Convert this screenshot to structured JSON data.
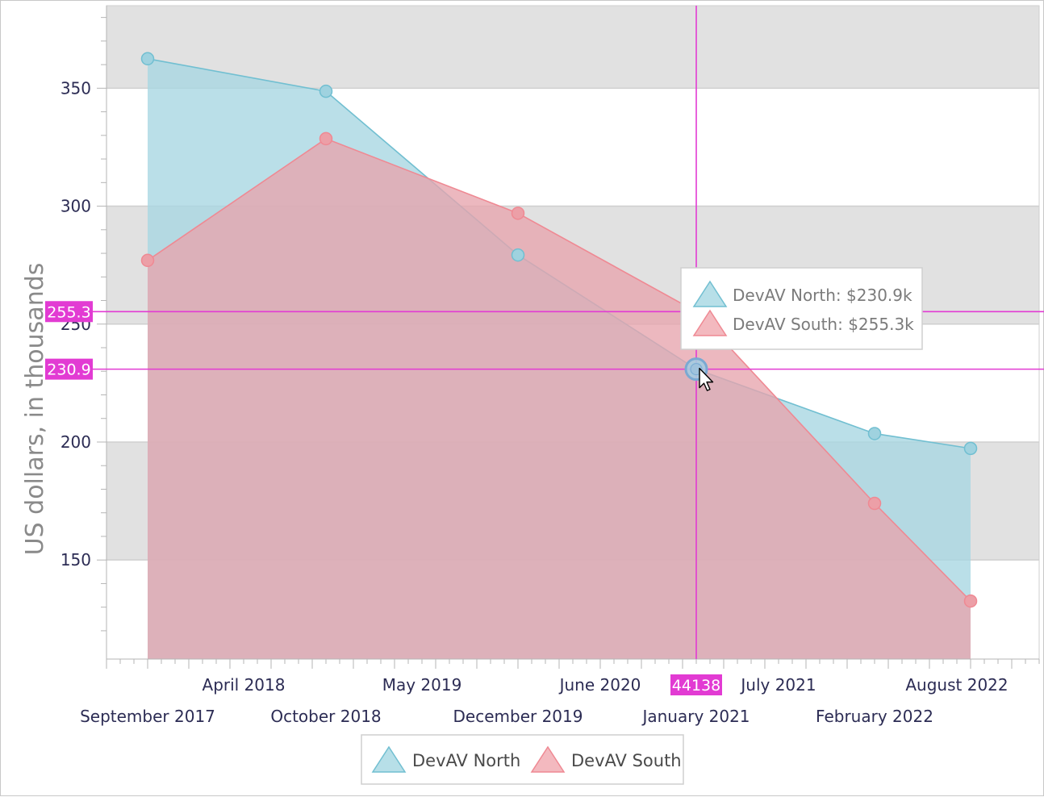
{
  "chart_data": {
    "type": "area",
    "ylabel": "US dollars, in thousands",
    "ylim": [
      108,
      385
    ],
    "y_ticks": [
      150,
      200,
      250,
      300,
      350
    ],
    "y_tick_labels": [
      "150",
      "200",
      "250",
      "300",
      "350"
    ],
    "x_axis_dates": {
      "start_month": "2017-06",
      "end_month": "2023-02",
      "row1": [
        {
          "month": "2018-04",
          "label": "April 2018"
        },
        {
          "month": "2019-05",
          "label": "May 2019"
        },
        {
          "month": "2020-06",
          "label": "June 2020"
        },
        {
          "month": "2021-07",
          "label": "July 2021"
        },
        {
          "month": "2022-08",
          "label": "August 2022"
        }
      ],
      "row2": [
        {
          "month": "2017-09",
          "label": "September 2017"
        },
        {
          "month": "2018-10",
          "label": "October 2018"
        },
        {
          "month": "2019-12",
          "label": "December 2019"
        },
        {
          "month": "2021-01",
          "label": "January 2021"
        },
        {
          "month": "2022-02",
          "label": "February 2022"
        }
      ]
    },
    "series": [
      {
        "name": "DevAV North",
        "color": "#71bfd1",
        "points": [
          {
            "month": "2017-09",
            "value": 362.5
          },
          {
            "month": "2018-10",
            "value": 348.7
          },
          {
            "month": "2019-12",
            "value": 279.3
          },
          {
            "month": "2021-01",
            "value": 230.9
          },
          {
            "month": "2022-02",
            "value": 203.6
          },
          {
            "month": "2022-09",
            "value": 197.3
          }
        ]
      },
      {
        "name": "DevAV South",
        "color": "#ef8993",
        "points": [
          {
            "month": "2017-09",
            "value": 277.0
          },
          {
            "month": "2018-10",
            "value": 328.6
          },
          {
            "month": "2019-12",
            "value": 297.0
          },
          {
            "month": "2021-01",
            "value": 255.3
          },
          {
            "month": "2022-02",
            "value": 174.0
          },
          {
            "month": "2022-09",
            "value": 132.6
          }
        ]
      }
    ],
    "crosshair": {
      "x_label": "44138",
      "x_month": "2021-01",
      "values": [
        "255.3",
        "230.9"
      ],
      "color": "#e23bd3"
    },
    "tooltip": {
      "items": [
        "DevAV North: $230.9k",
        "DevAV South: $255.3k"
      ]
    },
    "legend": {
      "position": "bottom-center",
      "items": [
        "DevAV North",
        "DevAV South"
      ]
    }
  }
}
